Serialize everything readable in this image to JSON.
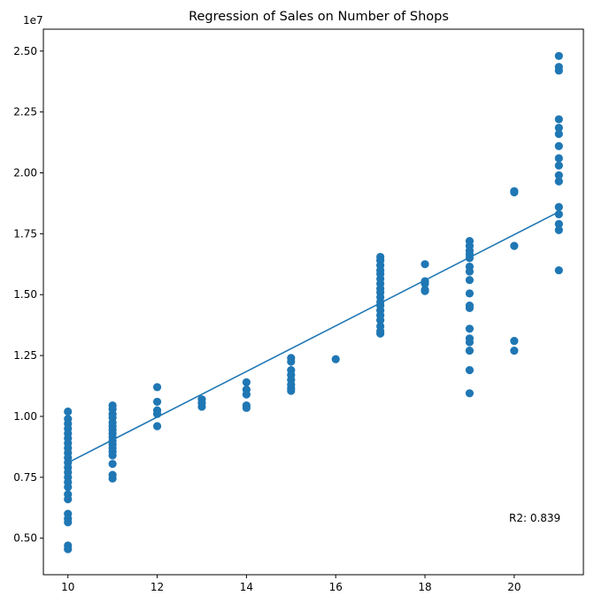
{
  "chart_data": {
    "type": "scatter",
    "title": "Regression of Sales on Number of Shops",
    "xlabel": "",
    "ylabel": "",
    "y_offset_label": "1e7",
    "xlim": [
      9.45,
      21.55
    ],
    "ylim": [
      0.35,
      2.59
    ],
    "x_ticks": [
      10,
      12,
      14,
      16,
      18,
      20
    ],
    "y_ticks": [
      0.5,
      0.75,
      1.0,
      1.25,
      1.5,
      1.75,
      2.0,
      2.25,
      2.5
    ],
    "y_tick_labels": [
      "0.50",
      "0.75",
      "1.00",
      "1.25",
      "1.50",
      "1.75",
      "2.00",
      "2.25",
      "2.50"
    ],
    "grid": false,
    "points": [
      [
        10,
        1.02
      ],
      [
        10,
        0.99
      ],
      [
        10,
        0.97
      ],
      [
        10,
        0.95
      ],
      [
        10,
        0.93
      ],
      [
        10,
        0.91
      ],
      [
        10,
        0.89
      ],
      [
        10,
        0.87
      ],
      [
        10,
        0.85
      ],
      [
        10,
        0.83
      ],
      [
        10,
        0.81
      ],
      [
        10,
        0.79
      ],
      [
        10,
        0.77
      ],
      [
        10,
        0.75
      ],
      [
        10,
        0.73
      ],
      [
        10,
        0.71
      ],
      [
        10,
        0.68
      ],
      [
        10,
        0.66
      ],
      [
        10,
        0.6
      ],
      [
        10,
        0.58
      ],
      [
        10,
        0.565
      ],
      [
        10,
        0.47
      ],
      [
        10,
        0.455
      ],
      [
        11,
        1.045
      ],
      [
        11,
        1.03
      ],
      [
        11,
        1.01
      ],
      [
        11,
        0.995
      ],
      [
        11,
        0.975
      ],
      [
        11,
        0.96
      ],
      [
        11,
        0.945
      ],
      [
        11,
        0.93
      ],
      [
        11,
        0.915
      ],
      [
        11,
        0.9
      ],
      [
        11,
        0.885
      ],
      [
        11,
        0.87
      ],
      [
        11,
        0.855
      ],
      [
        11,
        0.84
      ],
      [
        11,
        0.805
      ],
      [
        11,
        0.76
      ],
      [
        11,
        0.745
      ],
      [
        12,
        1.12
      ],
      [
        12,
        1.06
      ],
      [
        12,
        1.025
      ],
      [
        12,
        1.01
      ],
      [
        12,
        0.96
      ],
      [
        13,
        1.07
      ],
      [
        13,
        1.055
      ],
      [
        13,
        1.04
      ],
      [
        14,
        1.14
      ],
      [
        14,
        1.11
      ],
      [
        14,
        1.09
      ],
      [
        14,
        1.045
      ],
      [
        14,
        1.035
      ],
      [
        15,
        1.24
      ],
      [
        15,
        1.225
      ],
      [
        15,
        1.19
      ],
      [
        15,
        1.17
      ],
      [
        15,
        1.15
      ],
      [
        15,
        1.13
      ],
      [
        15,
        1.115
      ],
      [
        15,
        1.105
      ],
      [
        16,
        1.235
      ],
      [
        17,
        1.655
      ],
      [
        17,
        1.64
      ],
      [
        17,
        1.62
      ],
      [
        17,
        1.6
      ],
      [
        17,
        1.585
      ],
      [
        17,
        1.565
      ],
      [
        17,
        1.545
      ],
      [
        17,
        1.525
      ],
      [
        17,
        1.51
      ],
      [
        17,
        1.49
      ],
      [
        17,
        1.47
      ],
      [
        17,
        1.455
      ],
      [
        17,
        1.435
      ],
      [
        17,
        1.415
      ],
      [
        17,
        1.395
      ],
      [
        17,
        1.37
      ],
      [
        17,
        1.35
      ],
      [
        17,
        1.34
      ],
      [
        18,
        1.625
      ],
      [
        18,
        1.555
      ],
      [
        18,
        1.545
      ],
      [
        18,
        1.52
      ],
      [
        18,
        1.515
      ],
      [
        19,
        1.72
      ],
      [
        19,
        1.7
      ],
      [
        19,
        1.68
      ],
      [
        19,
        1.665
      ],
      [
        19,
        1.65
      ],
      [
        19,
        1.615
      ],
      [
        19,
        1.595
      ],
      [
        19,
        1.56
      ],
      [
        19,
        1.505
      ],
      [
        19,
        1.455
      ],
      [
        19,
        1.445
      ],
      [
        19,
        1.36
      ],
      [
        19,
        1.32
      ],
      [
        19,
        1.305
      ],
      [
        19,
        1.27
      ],
      [
        19,
        1.19
      ],
      [
        19,
        1.095
      ],
      [
        20,
        1.925
      ],
      [
        20,
        1.92
      ],
      [
        20,
        1.7
      ],
      [
        20,
        1.31
      ],
      [
        20,
        1.27
      ],
      [
        21,
        2.48
      ],
      [
        21,
        2.435
      ],
      [
        21,
        2.42
      ],
      [
        21,
        2.22
      ],
      [
        21,
        2.185
      ],
      [
        21,
        2.16
      ],
      [
        21,
        2.11
      ],
      [
        21,
        2.06
      ],
      [
        21,
        2.03
      ],
      [
        21,
        1.99
      ],
      [
        21,
        1.965
      ],
      [
        21,
        1.86
      ],
      [
        21,
        1.83
      ],
      [
        21,
        1.79
      ],
      [
        21,
        1.765
      ],
      [
        21,
        1.6
      ]
    ],
    "regression_line": {
      "x": [
        10,
        21
      ],
      "y": [
        0.81,
        1.84
      ]
    },
    "annotation": "R2: 0.839",
    "marker_color": "#1f77b4",
    "line_color": "#1f77b4"
  }
}
